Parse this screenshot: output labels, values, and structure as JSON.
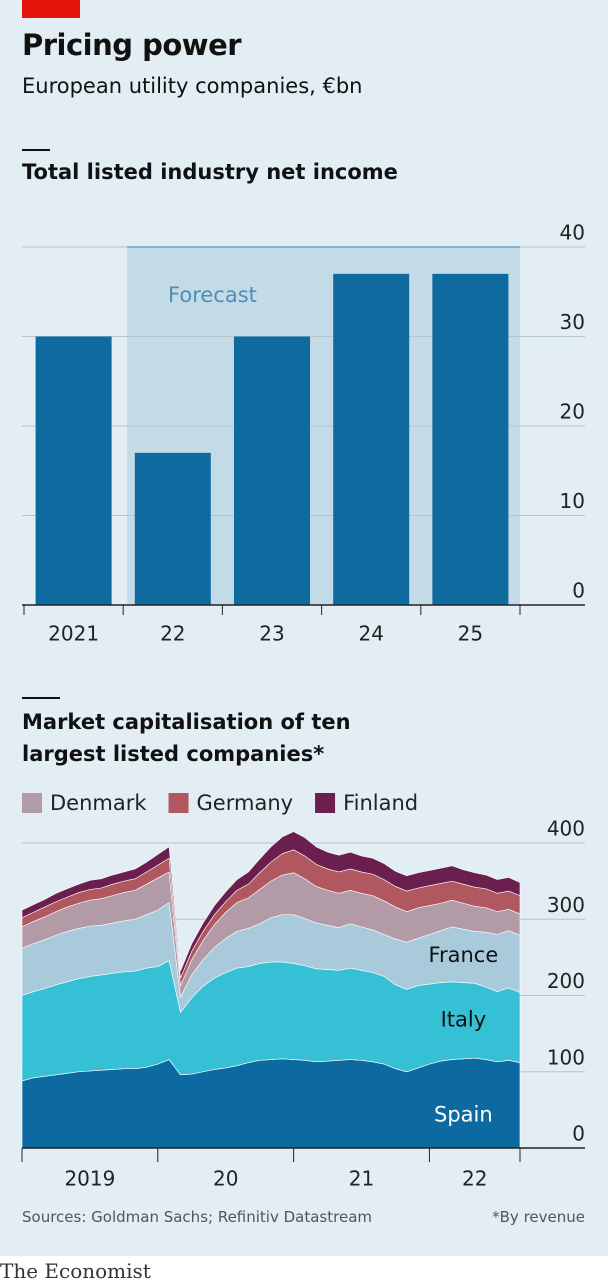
{
  "header": {
    "title": "Pricing power",
    "subtitle": "European utility companies, €bn"
  },
  "chart_data": [
    {
      "type": "bar",
      "title": "Total listed industry net income",
      "categories": [
        "2021",
        "22",
        "23",
        "24",
        "25"
      ],
      "values": [
        30,
        17,
        30,
        37,
        37
      ],
      "color": "#0f6aa0",
      "ylim": [
        0,
        40
      ],
      "yticks": [
        0,
        10,
        20,
        30,
        40
      ],
      "grid": true,
      "forecast": {
        "label": "Forecast",
        "from": "22",
        "color": "#c3dae7"
      }
    },
    {
      "type": "stacked-area",
      "title": "Market capitalisation of ten largest listed companies*",
      "x": [
        2019,
        2019.083,
        2019.167,
        2019.25,
        2019.333,
        2019.417,
        2019.5,
        2019.583,
        2019.667,
        2019.75,
        2019.833,
        2019.917,
        2020,
        2020.083,
        2020.167,
        2020.25,
        2020.333,
        2020.417,
        2020.5,
        2020.583,
        2020.667,
        2020.75,
        2020.833,
        2020.917,
        2021,
        2021.083,
        2021.167,
        2021.25,
        2021.333,
        2021.417,
        2021.5,
        2021.583,
        2021.667,
        2021.75,
        2021.833,
        2021.917,
        2022,
        2022.083,
        2022.167,
        2022.25,
        2022.333,
        2022.417,
        2022.5,
        2022.583,
        2022.667
      ],
      "xlim": [
        2019,
        2022.667
      ],
      "xticks": [
        {
          "value": 2019,
          "label": "2019"
        },
        {
          "value": 2020,
          "label": "20"
        },
        {
          "value": 2021,
          "label": "21"
        },
        {
          "value": 2022,
          "label": "22"
        }
      ],
      "ylim": [
        0,
        400
      ],
      "yticks": [
        0,
        100,
        200,
        300,
        400
      ],
      "grid": true,
      "series": [
        {
          "name": "Spain",
          "color": "#0d6aa0",
          "label": "direct",
          "values": [
            88,
            92,
            94,
            96,
            98,
            100,
            101,
            102,
            103,
            104,
            104,
            106,
            110,
            116,
            96,
            97,
            100,
            103,
            105,
            108,
            112,
            115,
            116,
            117,
            116,
            115,
            113,
            114,
            115,
            116,
            115,
            113,
            110,
            104,
            100,
            105,
            110,
            114,
            116,
            117,
            118,
            116,
            113,
            115,
            112
          ]
        },
        {
          "name": "Italy",
          "color": "#35c0d5",
          "label": "direct",
          "values": [
            112,
            113,
            115,
            118,
            120,
            122,
            124,
            125,
            126,
            127,
            128,
            130,
            128,
            130,
            82,
            100,
            112,
            120,
            125,
            128,
            126,
            127,
            128,
            127,
            126,
            124,
            122,
            120,
            118,
            120,
            118,
            117,
            115,
            110,
            108,
            108,
            105,
            103,
            102,
            100,
            98,
            95,
            92,
            95,
            92
          ]
        },
        {
          "name": "France",
          "color": "#a8cadb",
          "label": "direct",
          "values": [
            62,
            63,
            64,
            65,
            66,
            66,
            66,
            65,
            66,
            67,
            68,
            70,
            74,
            76,
            20,
            30,
            35,
            40,
            45,
            48,
            50,
            52,
            58,
            62,
            64,
            62,
            60,
            58,
            56,
            58,
            57,
            56,
            55,
            60,
            62,
            62,
            65,
            68,
            72,
            70,
            68,
            72,
            75,
            75,
            75
          ]
        },
        {
          "name": "Denmark",
          "color": "#b39aa7",
          "label": "legend",
          "values": [
            28,
            29,
            30,
            31,
            32,
            33,
            34,
            35,
            36,
            37,
            38,
            40,
            42,
            40,
            15,
            20,
            25,
            30,
            34,
            38,
            40,
            45,
            48,
            52,
            55,
            52,
            48,
            46,
            45,
            44,
            44,
            45,
            44,
            42,
            40,
            40,
            38,
            36,
            35,
            34,
            33,
            32,
            30,
            28,
            28
          ]
        },
        {
          "name": "Germany",
          "color": "#b0575f",
          "label": "legend",
          "values": [
            12,
            12,
            13,
            13,
            13,
            14,
            14,
            14,
            15,
            15,
            15,
            16,
            17,
            18,
            10,
            11,
            12,
            13,
            14,
            16,
            18,
            22,
            25,
            28,
            30,
            30,
            29,
            28,
            28,
            28,
            28,
            28,
            28,
            27,
            27,
            26,
            26,
            26,
            25,
            25,
            25,
            25,
            24,
            24,
            24
          ]
        },
        {
          "name": "Finland",
          "color": "#6b1f4e",
          "label": "legend",
          "values": [
            10,
            10,
            10,
            11,
            11,
            11,
            12,
            12,
            12,
            12,
            13,
            13,
            14,
            15,
            9,
            10,
            11,
            12,
            13,
            14,
            16,
            18,
            20,
            22,
            24,
            24,
            23,
            22,
            22,
            22,
            21,
            21,
            21,
            20,
            20,
            20,
            20,
            20,
            20,
            19,
            19,
            18,
            18,
            18,
            17
          ]
        }
      ]
    }
  ],
  "footer": {
    "source": "Sources: Goldman Sachs; Refinitiv Datastream",
    "note": "*By revenue",
    "brand": "The Economist"
  }
}
